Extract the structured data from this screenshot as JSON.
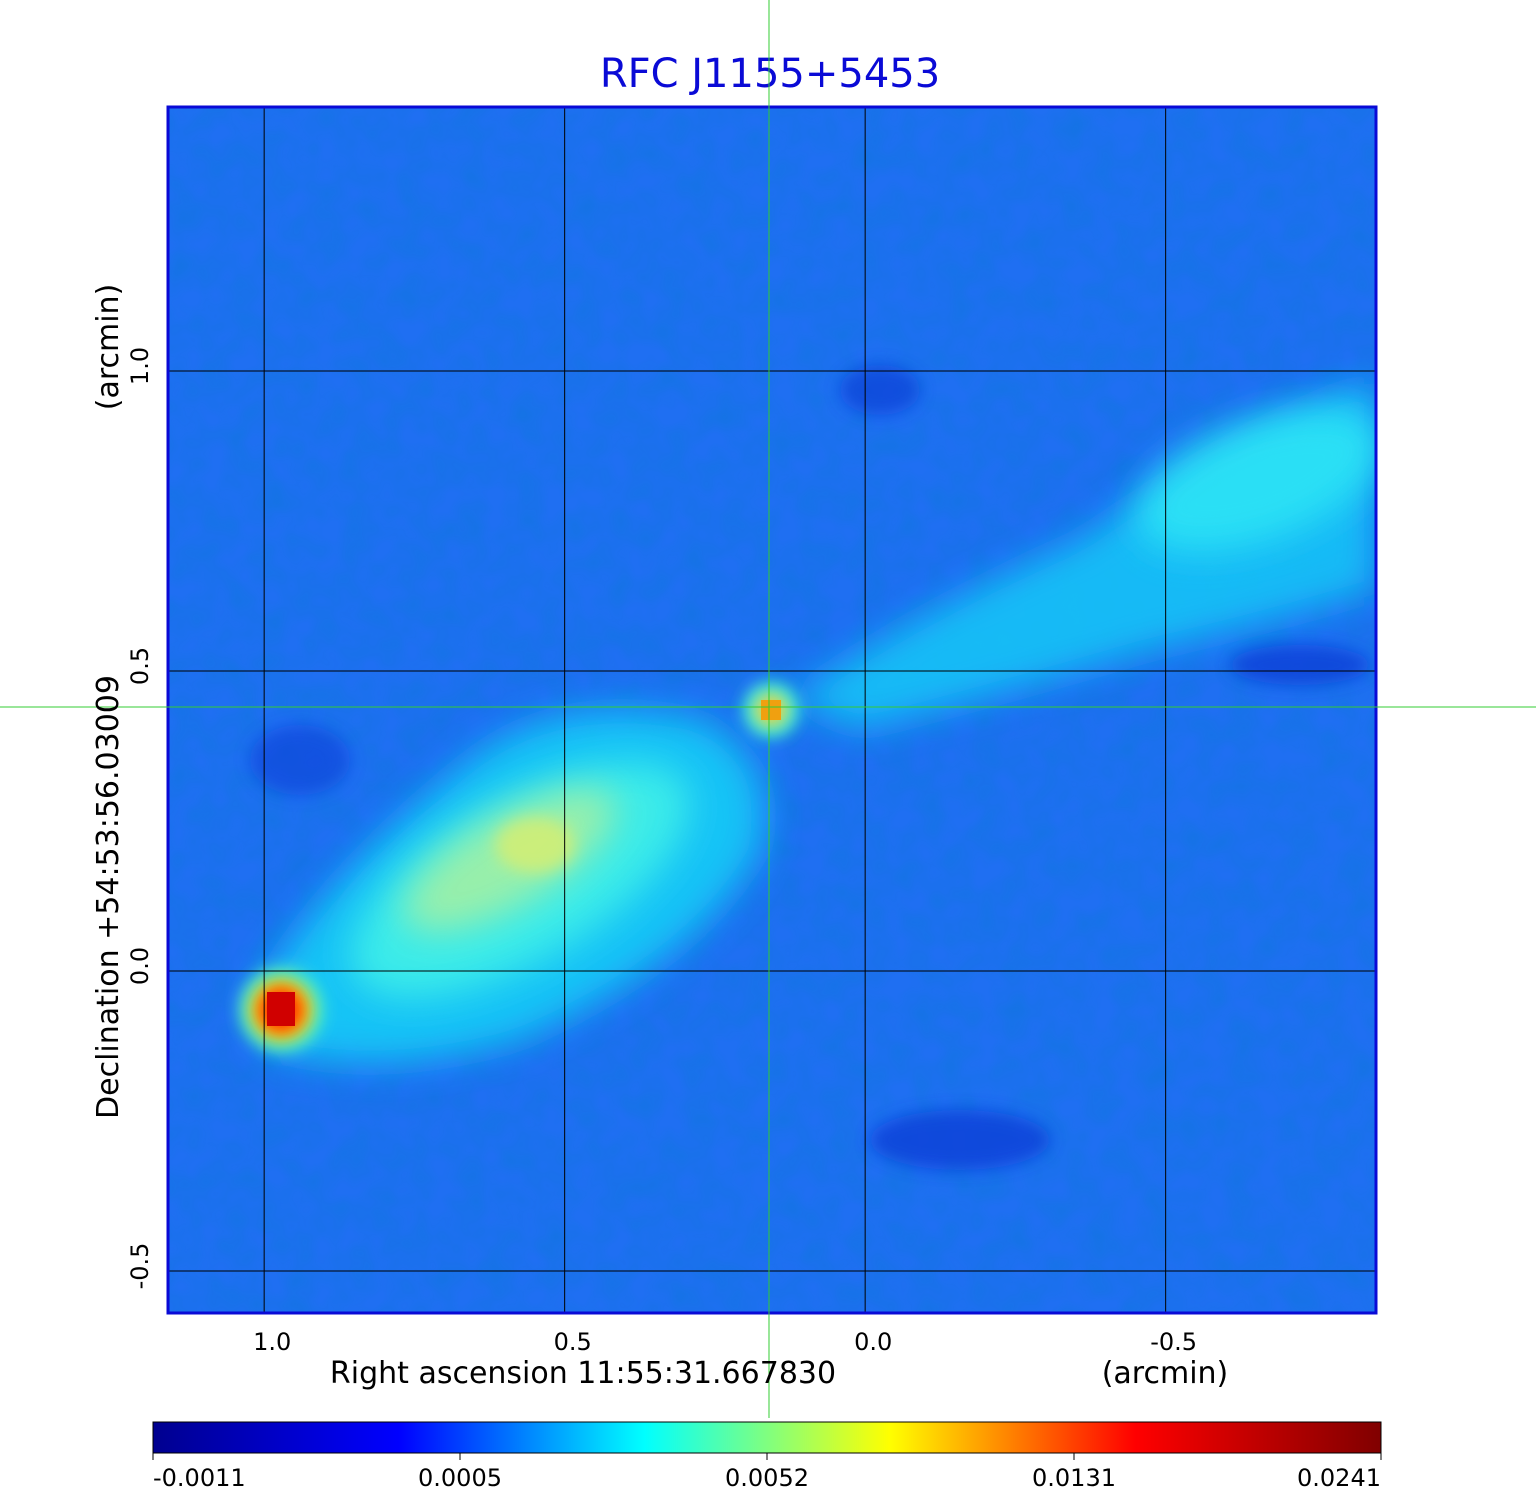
{
  "chart_data": {
    "type": "heatmap",
    "title": "RFC J1155+5453",
    "xlabel": "Right ascension  11:55:31.667830",
    "xunit": "(arcmin)",
    "ylabel": "Declination  +54:53:56.03009",
    "yunit": "(arcmin)",
    "x_ticks": [
      "1.0",
      "0.5",
      "0.0",
      "-0.5"
    ],
    "y_ticks": [
      "1.0",
      "0.5",
      "0.0",
      "-0.5"
    ],
    "x_tick_values": [
      1.0,
      0.5,
      0.0,
      -0.5
    ],
    "y_tick_values": [
      1.0,
      0.5,
      0.0,
      -0.5
    ],
    "xlim": [
      1.16,
      -0.85
    ],
    "ylim": [
      -0.57,
      1.44
    ],
    "grid": true,
    "crosshair": {
      "x": 0.16,
      "y": 0.44
    },
    "colorbar": {
      "ticks": [
        "-0.0011",
        "0.0005",
        "0.0052",
        "0.0131",
        "0.0241"
      ],
      "tick_values": [
        -0.0011,
        0.0005,
        0.0052,
        0.0131,
        0.0241
      ],
      "colors": [
        "#00008f",
        "#0000ff",
        "#00ffff",
        "#ffff00",
        "#ff0000",
        "#800000"
      ],
      "min": -0.0011,
      "max": 0.0241
    },
    "features": [
      {
        "x": 0.97,
        "y": -0.06,
        "value": 0.0241
      },
      {
        "x": 0.16,
        "y": 0.43,
        "value": 0.0131
      },
      {
        "x": 0.55,
        "y": 0.2,
        "value": 0.0052
      }
    ],
    "colors": {
      "title": "#0a0ad6",
      "frame": "#0a0ad6",
      "crosshair": "#33cc33",
      "grid": "#000000",
      "background_emission": "#1e6cf0"
    }
  }
}
